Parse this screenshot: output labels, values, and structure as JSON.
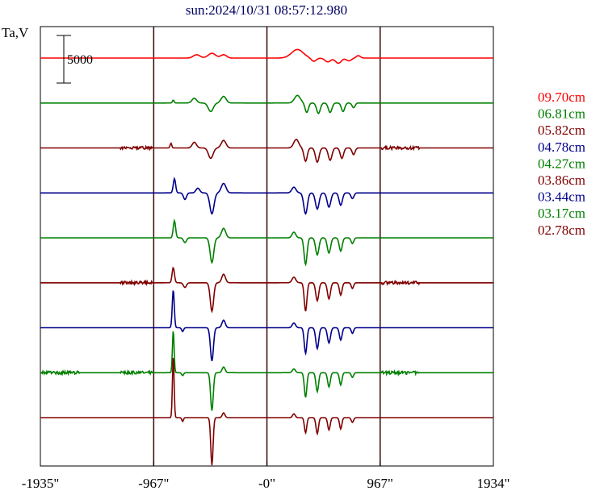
{
  "chart_data": {
    "type": "line",
    "title": "sun:2024/10/31 08:57:12.980",
    "ylabel": "Ta,V",
    "scale_bar_label": "5000",
    "x_ticks": [
      {
        "value": -1935,
        "label": "-1935\""
      },
      {
        "value": -967,
        "label": "-967\""
      },
      {
        "value": 0,
        "label": "-0\""
      },
      {
        "value": 967,
        "label": "967\""
      },
      {
        "value": 1934,
        "label": "1934\""
      }
    ],
    "xlim": [
      -1935,
      1934
    ],
    "grid_verticals": [
      -967,
      0,
      967
    ],
    "grid_color": "#3a0a0a",
    "series": [
      {
        "name": "09.70cm",
        "color": "#ff0000",
        "noise": 0,
        "features": [
          {
            "x": -600,
            "a": 350,
            "w": 40
          },
          {
            "x": -470,
            "a": 500,
            "w": 45
          },
          {
            "x": -370,
            "a": 350,
            "w": 35
          },
          {
            "x": 260,
            "a": 900,
            "w": 70
          },
          {
            "x": 400,
            "a": -350,
            "w": 30
          },
          {
            "x": 520,
            "a": -400,
            "w": 35
          },
          {
            "x": 610,
            "a": -550,
            "w": 35
          },
          {
            "x": 700,
            "a": -300,
            "w": 30
          },
          {
            "x": 780,
            "a": 250,
            "w": 25
          }
        ]
      },
      {
        "name": "06.81cm",
        "color": "#008000",
        "noise": 0,
        "features": [
          {
            "x": -800,
            "a": 300,
            "w": 10
          },
          {
            "x": -620,
            "a": 500,
            "w": 28
          },
          {
            "x": -480,
            "a": -900,
            "w": 30
          },
          {
            "x": -370,
            "a": 700,
            "w": 30
          },
          {
            "x": 260,
            "a": 800,
            "w": 35
          },
          {
            "x": 340,
            "a": -1000,
            "w": 20
          },
          {
            "x": 440,
            "a": -1100,
            "w": 22
          },
          {
            "x": 540,
            "a": -1000,
            "w": 22
          },
          {
            "x": 650,
            "a": -900,
            "w": 20
          },
          {
            "x": 740,
            "a": -500,
            "w": 18
          }
        ]
      },
      {
        "name": "05.82cm",
        "color": "#800000",
        "noise": 1,
        "features": [
          {
            "x": -820,
            "a": 500,
            "w": 10
          },
          {
            "x": -620,
            "a": 600,
            "w": 25
          },
          {
            "x": -480,
            "a": -1100,
            "w": 28
          },
          {
            "x": -370,
            "a": 800,
            "w": 28
          },
          {
            "x": 250,
            "a": 900,
            "w": 30
          },
          {
            "x": 330,
            "a": -1400,
            "w": 20
          },
          {
            "x": 430,
            "a": -1500,
            "w": 22
          },
          {
            "x": 540,
            "a": -1300,
            "w": 22
          },
          {
            "x": 640,
            "a": -1100,
            "w": 20
          },
          {
            "x": 740,
            "a": -700,
            "w": 18
          }
        ]
      },
      {
        "name": "04.78cm",
        "color": "#00008b",
        "noise": 0,
        "features": [
          {
            "x": -790,
            "a": 1500,
            "w": 14
          },
          {
            "x": -700,
            "a": -700,
            "w": 18
          },
          {
            "x": -590,
            "a": 500,
            "w": 22
          },
          {
            "x": -470,
            "a": -2200,
            "w": 25
          },
          {
            "x": -370,
            "a": 1000,
            "w": 28
          },
          {
            "x": 230,
            "a": 600,
            "w": 25
          },
          {
            "x": 330,
            "a": -2200,
            "w": 22
          },
          {
            "x": 430,
            "a": -1700,
            "w": 22
          },
          {
            "x": 530,
            "a": -1500,
            "w": 22
          },
          {
            "x": 630,
            "a": -1300,
            "w": 20
          },
          {
            "x": 730,
            "a": -600,
            "w": 18
          }
        ]
      },
      {
        "name": "04.27cm",
        "color": "#008000",
        "noise": 0,
        "features": [
          {
            "x": -790,
            "a": 1800,
            "w": 14
          },
          {
            "x": -700,
            "a": -500,
            "w": 18
          },
          {
            "x": -470,
            "a": -2600,
            "w": 22
          },
          {
            "x": -370,
            "a": 1000,
            "w": 25
          },
          {
            "x": 230,
            "a": 600,
            "w": 22
          },
          {
            "x": 330,
            "a": -2800,
            "w": 18
          },
          {
            "x": 430,
            "a": -1800,
            "w": 20
          },
          {
            "x": 530,
            "a": -1600,
            "w": 20
          },
          {
            "x": 630,
            "a": -1400,
            "w": 18
          },
          {
            "x": 730,
            "a": -600,
            "w": 16
          }
        ]
      },
      {
        "name": "03.86cm",
        "color": "#800000",
        "noise": 1,
        "features": [
          {
            "x": -800,
            "a": 1600,
            "w": 14
          },
          {
            "x": -700,
            "a": -500,
            "w": 18
          },
          {
            "x": -470,
            "a": -3000,
            "w": 20
          },
          {
            "x": -370,
            "a": 900,
            "w": 22
          },
          {
            "x": 230,
            "a": 600,
            "w": 22
          },
          {
            "x": 330,
            "a": -3000,
            "w": 16
          },
          {
            "x": 430,
            "a": -1900,
            "w": 18
          },
          {
            "x": 530,
            "a": -1700,
            "w": 18
          },
          {
            "x": 630,
            "a": -1300,
            "w": 16
          },
          {
            "x": 730,
            "a": -600,
            "w": 14
          }
        ]
      },
      {
        "name": "03.44cm",
        "color": "#00008b",
        "noise": 0,
        "features": [
          {
            "x": -800,
            "a": 4000,
            "w": 12
          },
          {
            "x": -720,
            "a": -400,
            "w": 12
          },
          {
            "x": -470,
            "a": -3500,
            "w": 18
          },
          {
            "x": -370,
            "a": 800,
            "w": 20
          },
          {
            "x": 230,
            "a": 500,
            "w": 20
          },
          {
            "x": 330,
            "a": -2700,
            "w": 16
          },
          {
            "x": 430,
            "a": -2200,
            "w": 18
          },
          {
            "x": 530,
            "a": -1600,
            "w": 18
          },
          {
            "x": 630,
            "a": -1300,
            "w": 16
          },
          {
            "x": 730,
            "a": -600,
            "w": 14
          }
        ]
      },
      {
        "name": "03.17cm",
        "color": "#008000",
        "noise": 2,
        "features": [
          {
            "x": -800,
            "a": 4500,
            "w": 10
          },
          {
            "x": -720,
            "a": -300,
            "w": 12
          },
          {
            "x": -470,
            "a": -4000,
            "w": 16
          },
          {
            "x": -370,
            "a": 600,
            "w": 18
          },
          {
            "x": 230,
            "a": 400,
            "w": 18
          },
          {
            "x": 330,
            "a": -2600,
            "w": 15
          },
          {
            "x": 430,
            "a": -2000,
            "w": 16
          },
          {
            "x": 530,
            "a": -1500,
            "w": 16
          },
          {
            "x": 630,
            "a": -1300,
            "w": 15
          },
          {
            "x": 730,
            "a": -500,
            "w": 14
          }
        ]
      },
      {
        "name": "02.78cm",
        "color": "#800000",
        "noise": 0,
        "features": [
          {
            "x": -800,
            "a": 6500,
            "w": 10
          },
          {
            "x": -720,
            "a": -400,
            "w": 10
          },
          {
            "x": -470,
            "a": -5000,
            "w": 14
          },
          {
            "x": -370,
            "a": 500,
            "w": 16
          },
          {
            "x": 230,
            "a": 400,
            "w": 16
          },
          {
            "x": 330,
            "a": -1600,
            "w": 14
          },
          {
            "x": 430,
            "a": -1700,
            "w": 15
          },
          {
            "x": 530,
            "a": -1300,
            "w": 15
          },
          {
            "x": 630,
            "a": -1200,
            "w": 14
          },
          {
            "x": 730,
            "a": -500,
            "w": 14
          }
        ]
      }
    ]
  }
}
